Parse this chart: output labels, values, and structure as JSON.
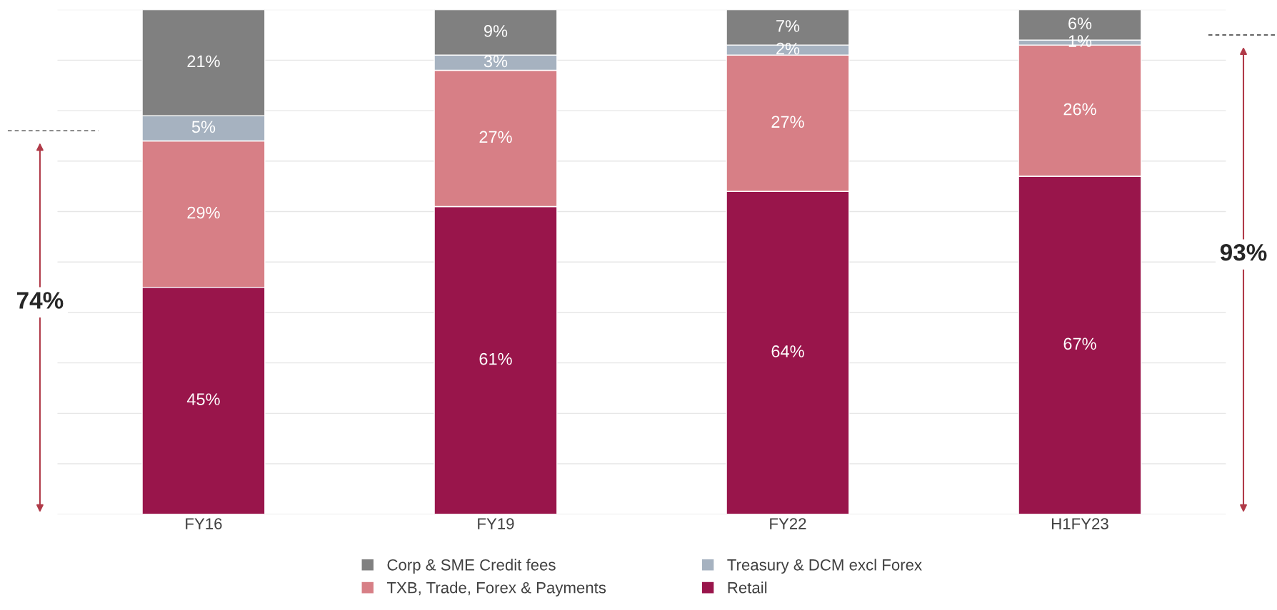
{
  "chart_data": {
    "type": "bar",
    "stacked": true,
    "categories": [
      "FY16",
      "FY19",
      "FY22",
      "H1FY23"
    ],
    "series": [
      {
        "name": "Retail",
        "color": "#99154b",
        "values": [
          45,
          61,
          64,
          67
        ],
        "value_labels": [
          "45%",
          "61%",
          "64%",
          "67%"
        ]
      },
      {
        "name": "TXB, Trade, Forex & Payments",
        "color": "#d77f86",
        "values": [
          29,
          27,
          27,
          26
        ],
        "value_labels": [
          "29%",
          "27%",
          "27%",
          "26%"
        ]
      },
      {
        "name": "Treasury & DCM excl Forex",
        "color": "#a6b2c0",
        "values": [
          5,
          3,
          2,
          1
        ],
        "value_labels": [
          "5%",
          "3%",
          "2%",
          "1%"
        ]
      },
      {
        "name": "Corp & SME Credit fees",
        "color": "#808080",
        "values": [
          21,
          9,
          7,
          6
        ],
        "value_labels": [
          "21%",
          "9%",
          "7%",
          "6%"
        ]
      }
    ],
    "grid": "y",
    "legend": "bottom",
    "annotations": [
      "74%",
      "93%"
    ]
  }
}
